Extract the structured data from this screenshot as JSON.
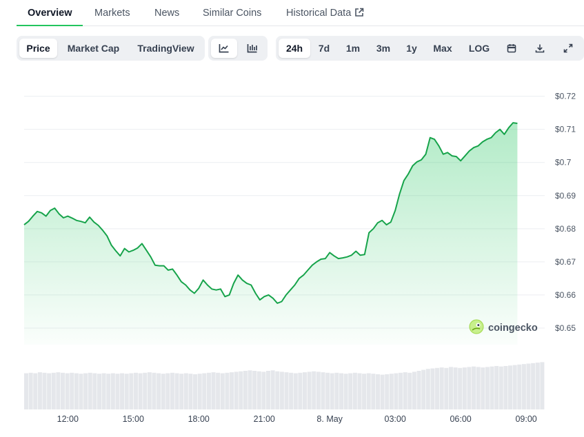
{
  "tabs": [
    {
      "label": "Overview"
    },
    {
      "label": "Markets"
    },
    {
      "label": "News"
    },
    {
      "label": "Similar Coins"
    },
    {
      "label": "Historical Data"
    }
  ],
  "type_tabs": [
    {
      "label": "Price"
    },
    {
      "label": "Market Cap"
    },
    {
      "label": "TradingView"
    }
  ],
  "ranges": [
    {
      "label": "24h"
    },
    {
      "label": "7d"
    },
    {
      "label": "1m"
    },
    {
      "label": "3m"
    },
    {
      "label": "1y"
    },
    {
      "label": "Max"
    },
    {
      "label": "LOG"
    }
  ],
  "icons": {
    "external_link": "external-link-icon",
    "line_chart": "line-chart-icon",
    "candlestick": "candlestick-icon",
    "calendar": "calendar-icon",
    "download": "download-icon",
    "fullscreen": "fullscreen-icon",
    "logo": "gecko-logo-icon"
  },
  "colors": {
    "accent": "#22c55e",
    "line": "#16a34a",
    "volume": "#e5e7eb"
  },
  "watermark": "coingecko",
  "chart_data": {
    "type": "area",
    "title": "",
    "xlabel": "",
    "ylabel": "",
    "y_axis_position": "right",
    "grid": true,
    "legend": "none",
    "ylim": [
      0.645,
      0.722
    ],
    "yticks": [
      0.65,
      0.66,
      0.67,
      0.68,
      0.69,
      0.7,
      0.71,
      0.72
    ],
    "ytick_labels": [
      "$0.65",
      "$0.66",
      "$0.67",
      "$0.68",
      "$0.69",
      "$0.7",
      "$0.71",
      "$0.72"
    ],
    "xlim": [
      10.0,
      33.85
    ],
    "xticks": [
      12,
      15,
      18,
      21,
      24,
      27,
      30,
      33
    ],
    "xtick_labels": [
      "12:00",
      "15:00",
      "18:00",
      "21:00",
      "8. May",
      "03:00",
      "06:00",
      "09:00"
    ],
    "series": [
      {
        "values": [
          [
            10.0,
            0.6812
          ],
          [
            10.2,
            0.6822
          ],
          [
            10.4,
            0.6838
          ],
          [
            10.6,
            0.6852
          ],
          [
            10.8,
            0.6848
          ],
          [
            11.0,
            0.6838
          ],
          [
            11.2,
            0.6855
          ],
          [
            11.4,
            0.6862
          ],
          [
            11.6,
            0.6845
          ],
          [
            11.8,
            0.6833
          ],
          [
            12.0,
            0.6838
          ],
          [
            12.2,
            0.6832
          ],
          [
            12.4,
            0.6825
          ],
          [
            12.6,
            0.6822
          ],
          [
            12.8,
            0.6818
          ],
          [
            13.0,
            0.6835
          ],
          [
            13.2,
            0.682
          ],
          [
            13.4,
            0.681
          ],
          [
            13.6,
            0.6795
          ],
          [
            13.8,
            0.6778
          ],
          [
            14.0,
            0.675
          ],
          [
            14.2,
            0.6733
          ],
          [
            14.4,
            0.6718
          ],
          [
            14.6,
            0.674
          ],
          [
            14.8,
            0.673
          ],
          [
            15.0,
            0.6735
          ],
          [
            15.2,
            0.6742
          ],
          [
            15.4,
            0.6755
          ],
          [
            15.6,
            0.6735
          ],
          [
            15.8,
            0.6715
          ],
          [
            16.0,
            0.669
          ],
          [
            16.2,
            0.6688
          ],
          [
            16.4,
            0.6688
          ],
          [
            16.6,
            0.6675
          ],
          [
            16.8,
            0.6678
          ],
          [
            17.0,
            0.666
          ],
          [
            17.2,
            0.664
          ],
          [
            17.4,
            0.663
          ],
          [
            17.6,
            0.6615
          ],
          [
            17.8,
            0.6605
          ],
          [
            18.0,
            0.662
          ],
          [
            18.2,
            0.6645
          ],
          [
            18.4,
            0.663
          ],
          [
            18.6,
            0.6618
          ],
          [
            18.8,
            0.6615
          ],
          [
            19.0,
            0.6618
          ],
          [
            19.2,
            0.6595
          ],
          [
            19.4,
            0.66
          ],
          [
            19.6,
            0.6635
          ],
          [
            19.8,
            0.666
          ],
          [
            20.0,
            0.6645
          ],
          [
            20.2,
            0.6635
          ],
          [
            20.4,
            0.663
          ],
          [
            20.6,
            0.6605
          ],
          [
            20.8,
            0.6585
          ],
          [
            21.0,
            0.6595
          ],
          [
            21.2,
            0.66
          ],
          [
            21.4,
            0.659
          ],
          [
            21.6,
            0.6575
          ],
          [
            21.8,
            0.658
          ],
          [
            22.0,
            0.66
          ],
          [
            22.2,
            0.6615
          ],
          [
            22.4,
            0.663
          ],
          [
            22.6,
            0.665
          ],
          [
            22.8,
            0.666
          ],
          [
            23.0,
            0.6675
          ],
          [
            23.2,
            0.669
          ],
          [
            23.4,
            0.67
          ],
          [
            23.6,
            0.6708
          ],
          [
            23.8,
            0.671
          ],
          [
            24.0,
            0.6728
          ],
          [
            24.2,
            0.6718
          ],
          [
            24.4,
            0.671
          ],
          [
            24.6,
            0.6712
          ],
          [
            24.8,
            0.6715
          ],
          [
            25.0,
            0.672
          ],
          [
            25.2,
            0.6732
          ],
          [
            25.4,
            0.672
          ],
          [
            25.6,
            0.6722
          ],
          [
            25.8,
            0.6788
          ],
          [
            26.0,
            0.68
          ],
          [
            26.2,
            0.6818
          ],
          [
            26.4,
            0.6825
          ],
          [
            26.6,
            0.6812
          ],
          [
            26.8,
            0.682
          ],
          [
            27.0,
            0.6855
          ],
          [
            27.2,
            0.6905
          ],
          [
            27.4,
            0.6945
          ],
          [
            27.6,
            0.6965
          ],
          [
            27.8,
            0.699
          ],
          [
            28.0,
            0.7002
          ],
          [
            28.2,
            0.7008
          ],
          [
            28.4,
            0.7025
          ],
          [
            28.6,
            0.7075
          ],
          [
            28.8,
            0.707
          ],
          [
            29.0,
            0.705
          ],
          [
            29.2,
            0.7025
          ],
          [
            29.4,
            0.703
          ],
          [
            29.6,
            0.702
          ],
          [
            29.8,
            0.7018
          ],
          [
            30.0,
            0.7005
          ],
          [
            30.2,
            0.702
          ],
          [
            30.4,
            0.7035
          ],
          [
            30.6,
            0.7045
          ],
          [
            30.8,
            0.705
          ],
          [
            31.0,
            0.7062
          ],
          [
            31.2,
            0.707
          ],
          [
            31.4,
            0.7075
          ],
          [
            31.6,
            0.709
          ],
          [
            31.8,
            0.71
          ],
          [
            32.0,
            0.7085
          ],
          [
            32.2,
            0.7105
          ],
          [
            32.4,
            0.712
          ],
          [
            32.6,
            0.7118
          ]
        ]
      }
    ],
    "volume_relative": [
      0.75,
      0.76,
      0.75,
      0.77,
      0.76,
      0.75,
      0.76,
      0.77,
      0.76,
      0.75,
      0.76,
      0.75,
      0.74,
      0.75,
      0.76,
      0.75,
      0.74,
      0.75,
      0.74,
      0.75,
      0.74,
      0.75,
      0.74,
      0.75,
      0.76,
      0.75,
      0.76,
      0.77,
      0.76,
      0.75,
      0.74,
      0.75,
      0.76,
      0.75,
      0.74,
      0.75,
      0.74,
      0.73,
      0.74,
      0.75,
      0.76,
      0.77,
      0.76,
      0.75,
      0.76,
      0.77,
      0.78,
      0.79,
      0.8,
      0.81,
      0.8,
      0.79,
      0.78,
      0.8,
      0.81,
      0.79,
      0.78,
      0.77,
      0.76,
      0.75,
      0.76,
      0.77,
      0.78,
      0.79,
      0.78,
      0.77,
      0.76,
      0.75,
      0.76,
      0.75,
      0.74,
      0.75,
      0.76,
      0.75,
      0.74,
      0.75,
      0.74,
      0.73,
      0.72,
      0.73,
      0.74,
      0.75,
      0.76,
      0.77,
      0.76,
      0.78,
      0.8,
      0.82,
      0.84,
      0.85,
      0.86,
      0.87,
      0.86,
      0.88,
      0.87,
      0.86,
      0.87,
      0.88,
      0.89,
      0.88,
      0.87,
      0.88,
      0.89,
      0.9,
      0.89,
      0.9,
      0.91,
      0.92,
      0.93,
      0.94,
      0.95,
      0.96,
      0.97,
      0.98
    ]
  }
}
